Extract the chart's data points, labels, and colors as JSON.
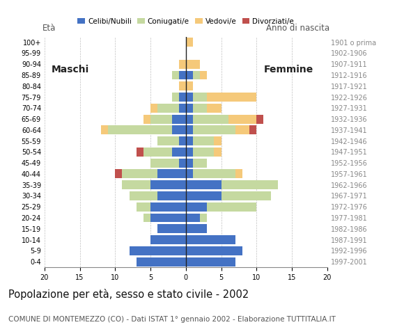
{
  "title": "Popolazione per età, sesso e stato civile - 2002",
  "subtitle": "COMUNE DI MONTEMEZZO (CO) - Dati ISTAT 1° gennaio 2002 - Elaborazione TUTTITALIA.IT",
  "age_groups": [
    "0-4",
    "5-9",
    "10-14",
    "15-19",
    "20-24",
    "25-29",
    "30-34",
    "35-39",
    "40-44",
    "45-49",
    "50-54",
    "55-59",
    "60-64",
    "65-69",
    "70-74",
    "75-79",
    "80-84",
    "85-89",
    "90-94",
    "95-99",
    "100+"
  ],
  "birth_years": [
    "1997-2001",
    "1992-1996",
    "1987-1991",
    "1982-1986",
    "1977-1981",
    "1972-1976",
    "1967-1971",
    "1962-1966",
    "1957-1961",
    "1952-1956",
    "1947-1951",
    "1942-1946",
    "1937-1941",
    "1932-1936",
    "1927-1931",
    "1922-1926",
    "1917-1921",
    "1912-1916",
    "1907-1911",
    "1902-1906",
    "1901 o prima"
  ],
  "colors": {
    "celibe": "#4472C4",
    "coniugato": "#C5D9A0",
    "vedovo": "#F5C97A",
    "divorziato": "#C0504D"
  },
  "legend_labels": [
    "Celibi/Nubili",
    "Coniugati/e",
    "Vedovi/e",
    "Divorziati/e"
  ],
  "maschi": {
    "celibe": [
      7,
      8,
      5,
      4,
      5,
      5,
      4,
      5,
      4,
      1,
      2,
      1,
      2,
      2,
      1,
      1,
      0,
      1,
      0,
      0,
      0
    ],
    "coniugato": [
      0,
      0,
      0,
      0,
      1,
      2,
      4,
      4,
      5,
      4,
      4,
      3,
      9,
      3,
      3,
      1,
      0,
      1,
      0,
      0,
      0
    ],
    "vedovo": [
      0,
      0,
      0,
      0,
      0,
      0,
      0,
      0,
      0,
      0,
      0,
      0,
      1,
      1,
      1,
      0,
      1,
      0,
      1,
      0,
      0
    ],
    "divorziato": [
      0,
      0,
      0,
      0,
      0,
      0,
      0,
      0,
      1,
      0,
      1,
      0,
      0,
      0,
      0,
      0,
      0,
      0,
      0,
      0,
      0
    ]
  },
  "femmine": {
    "celibe": [
      7,
      8,
      7,
      3,
      2,
      3,
      5,
      5,
      1,
      1,
      1,
      1,
      1,
      1,
      1,
      1,
      0,
      1,
      0,
      0,
      0
    ],
    "coniugato": [
      0,
      0,
      0,
      0,
      1,
      7,
      7,
      8,
      6,
      2,
      3,
      3,
      6,
      5,
      2,
      2,
      0,
      1,
      0,
      0,
      0
    ],
    "vedovo": [
      0,
      0,
      0,
      0,
      0,
      0,
      0,
      0,
      1,
      0,
      1,
      1,
      2,
      4,
      2,
      7,
      1,
      1,
      2,
      0,
      1
    ],
    "divorziato": [
      0,
      0,
      0,
      0,
      0,
      0,
      0,
      0,
      0,
      0,
      0,
      0,
      1,
      1,
      0,
      0,
      0,
      0,
      0,
      0,
      0
    ]
  },
  "xlim": 20,
  "background_color": "#ffffff",
  "grid_color": "#b0b0b0",
  "title_fontsize": 10.5,
  "subtitle_fontsize": 7.5,
  "tick_fontsize": 7,
  "label_fontsize": 8.5,
  "bar_height": 0.82
}
